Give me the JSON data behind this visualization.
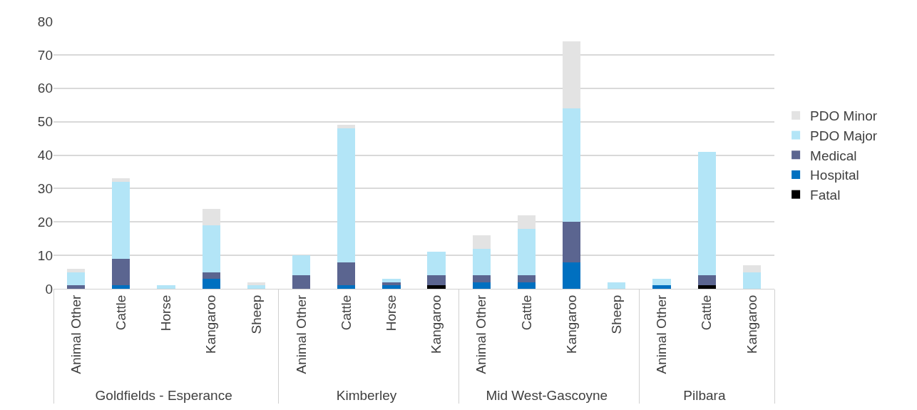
{
  "chart_data": {
    "type": "bar",
    "stacked": true,
    "categories": [
      "Animal Other",
      "Cattle",
      "Horse",
      "Kangaroo",
      "Sheep",
      "Animal Other",
      "Cattle",
      "Horse",
      "Kangaroo",
      "Animal Other",
      "Cattle",
      "Kangaroo",
      "Sheep",
      "Animal Other",
      "Cattle",
      "Kangaroo"
    ],
    "annotations": [
      "Goldfields - Esperance",
      "Kimberley",
      "Mid West-Gascoyne",
      "Pilbara"
    ],
    "series": [
      {
        "name": "Fatal",
        "color": "#000000",
        "values": [
          0,
          0,
          0,
          0,
          0,
          0,
          0,
          0,
          1,
          0,
          0,
          0,
          0,
          0,
          1,
          0
        ]
      },
      {
        "name": "Hospital",
        "color": "#0070c0",
        "values": [
          0,
          1,
          0,
          3,
          0,
          0,
          1,
          1,
          0,
          2,
          2,
          8,
          0,
          1,
          0,
          0
        ]
      },
      {
        "name": "Medical",
        "color": "#5b6590",
        "values": [
          1,
          8,
          0,
          2,
          0,
          4,
          7,
          1,
          3,
          2,
          2,
          12,
          0,
          0,
          3,
          0
        ]
      },
      {
        "name": "PDO Major",
        "color": "#b3e5f7",
        "values": [
          4,
          23,
          1,
          14,
          1,
          6,
          40,
          1,
          7,
          8,
          14,
          34,
          2,
          2,
          37,
          5
        ]
      },
      {
        "name": "PDO Minor",
        "color": "#e3e3e3",
        "values": [
          1,
          1,
          0,
          5,
          1,
          0,
          1,
          0,
          0,
          4,
          4,
          20,
          0,
          0,
          0,
          2
        ]
      }
    ],
    "ylim": [
      0,
      80
    ],
    "yticks": [
      0,
      10,
      20,
      30,
      40,
      50,
      60,
      70,
      80
    ],
    "grid": "y",
    "legend": "right"
  }
}
